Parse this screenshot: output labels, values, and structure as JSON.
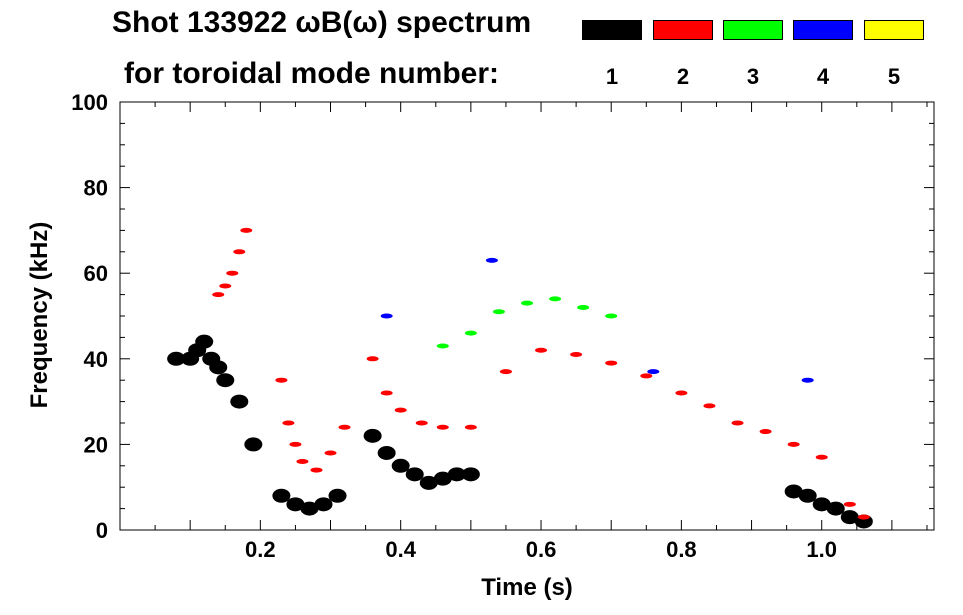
{
  "chart_data": {
    "type": "scatter",
    "title_line1": "Shot 133922 ωB(ω) spectrum",
    "title_line2": "for toroidal mode number:",
    "xlabel": "Time (s)",
    "ylabel": "Frequency (kHz)",
    "xlim": [
      0.0,
      1.16
    ],
    "ylim": [
      0,
      100
    ],
    "x_ticks": [
      "0.2",
      "0.4",
      "0.6",
      "0.8",
      "1.0"
    ],
    "x_tick_values": [
      0.2,
      0.4,
      0.6,
      0.8,
      1.0
    ],
    "y_ticks": [
      "0",
      "20",
      "40",
      "60",
      "80",
      "100"
    ],
    "y_tick_values": [
      0,
      20,
      40,
      60,
      80,
      100
    ],
    "legend": [
      {
        "label": "1",
        "color": "#000000"
      },
      {
        "label": "2",
        "color": "#ff0000"
      },
      {
        "label": "3",
        "color": "#00ff00"
      },
      {
        "label": "4",
        "color": "#0000ff"
      },
      {
        "label": "5",
        "color": "#ffff00"
      }
    ],
    "series": [
      {
        "name": "1",
        "color": "#000000",
        "x": [
          0.08,
          0.1,
          0.11,
          0.12,
          0.13,
          0.14,
          0.15,
          0.17,
          0.19,
          0.23,
          0.25,
          0.27,
          0.29,
          0.31,
          0.36,
          0.38,
          0.4,
          0.42,
          0.44,
          0.46,
          0.48,
          0.5,
          0.96,
          0.98,
          1.0,
          1.02,
          1.04,
          1.06
        ],
        "y": [
          40,
          40,
          42,
          44,
          40,
          38,
          35,
          30,
          20,
          8,
          6,
          5,
          6,
          8,
          22,
          18,
          15,
          13,
          11,
          12,
          13,
          13,
          9,
          8,
          6,
          5,
          3,
          2
        ]
      },
      {
        "name": "2",
        "color": "#ff0000",
        "x": [
          0.14,
          0.15,
          0.16,
          0.17,
          0.18,
          0.23,
          0.24,
          0.25,
          0.26,
          0.28,
          0.3,
          0.32,
          0.36,
          0.38,
          0.4,
          0.43,
          0.46,
          0.5,
          0.55,
          0.6,
          0.65,
          0.7,
          0.75,
          0.8,
          0.84,
          0.88,
          0.92,
          0.96,
          1.0,
          1.04,
          1.06
        ],
        "y": [
          55,
          57,
          60,
          65,
          70,
          35,
          25,
          20,
          16,
          14,
          18,
          24,
          40,
          32,
          28,
          25,
          24,
          24,
          37,
          42,
          41,
          39,
          36,
          32,
          29,
          25,
          23,
          20,
          17,
          6,
          3
        ]
      },
      {
        "name": "3",
        "color": "#00ff00",
        "x": [
          0.46,
          0.5,
          0.54,
          0.58,
          0.62,
          0.66,
          0.7
        ],
        "y": [
          43,
          46,
          51,
          53,
          54,
          52,
          50
        ]
      },
      {
        "name": "4",
        "color": "#0000ff",
        "x": [
          0.38,
          0.53,
          0.76,
          0.98
        ],
        "y": [
          50,
          63,
          37,
          35
        ]
      }
    ]
  }
}
